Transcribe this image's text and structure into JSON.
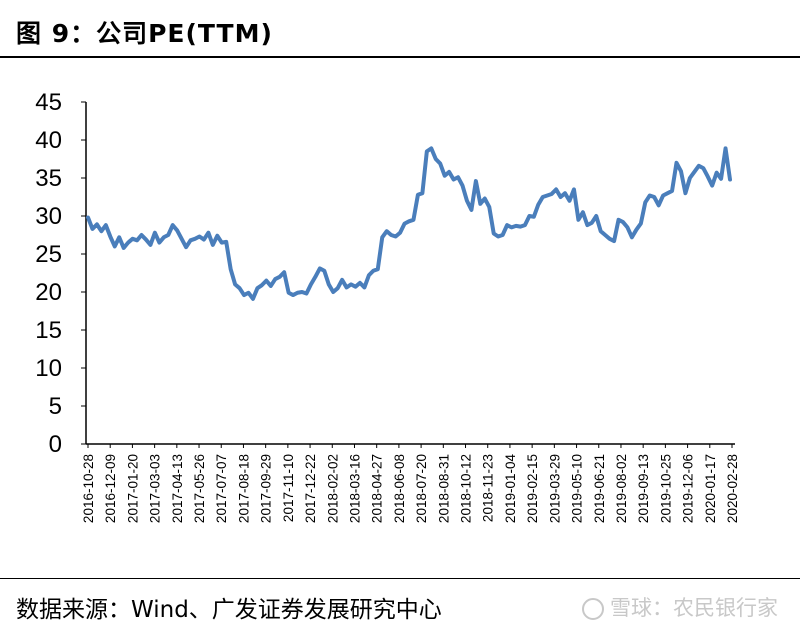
{
  "header": {
    "title": "图 9：公司PE(TTM)"
  },
  "footer": {
    "source": "数据来源：Wind、广发证券发展研究中心",
    "watermark": "雪球：农民银行家"
  },
  "colors": {
    "line": "#4a7ebb",
    "axis": "#000000",
    "text": "#000000"
  },
  "chart_data": {
    "type": "line",
    "title": "",
    "xlabel": "",
    "ylabel": "",
    "ylim": [
      0,
      45
    ],
    "yticks": [
      0,
      5,
      10,
      15,
      20,
      25,
      30,
      35,
      40,
      45
    ],
    "grid": false,
    "legend": "none",
    "xtick_labels": [
      "2016-10-28",
      "2016-12-09",
      "2017-01-20",
      "2017-03-03",
      "2017-04-13",
      "2017-05-26",
      "2017-07-07",
      "2017-08-18",
      "2017-09-29",
      "2017-11-10",
      "2017-12-22",
      "2018-02-02",
      "2018-03-16",
      "2018-04-27",
      "2018-06-08",
      "2018-07-20",
      "2018-08-31",
      "2018-10-12",
      "2018-11-23",
      "2019-01-04",
      "2019-02-15",
      "2019-03-29",
      "2019-05-10",
      "2019-06-21",
      "2019-08-02",
      "2019-09-13",
      "2019-10-25",
      "2019-12-06",
      "2020-01-17",
      "2020-02-28"
    ],
    "series": [
      {
        "values": [
          29.8,
          28.3,
          28.9,
          28.0,
          28.8,
          27.3,
          26.0,
          27.2,
          25.8,
          26.5,
          27.0,
          26.8,
          27.5,
          26.9,
          26.2,
          27.8,
          26.5,
          27.2,
          27.5,
          28.8,
          28.1,
          27.0,
          25.9,
          26.8,
          27.0,
          27.3,
          26.9,
          27.8,
          26.2,
          27.4,
          26.5,
          26.6,
          23.0,
          21.0,
          20.5,
          19.6,
          19.9,
          19.1,
          20.5,
          20.9,
          21.5,
          20.8,
          21.7,
          22.0,
          22.6,
          19.9,
          19.6,
          19.9,
          20.0,
          19.8,
          21.0,
          22.0,
          23.1,
          22.8,
          21.0,
          20.0,
          20.5,
          21.6,
          20.6,
          21.0,
          20.7,
          21.2,
          20.6,
          22.2,
          22.8,
          23.0,
          27.2,
          28.0,
          27.5,
          27.3,
          27.8,
          29.0,
          29.3,
          29.5,
          32.8,
          33.0,
          38.5,
          38.9,
          37.5,
          36.9,
          35.3,
          35.8,
          34.8,
          35.1,
          34.0,
          32.0,
          30.8,
          34.6,
          31.6,
          32.3,
          31.2,
          27.7,
          27.3,
          27.5,
          28.8,
          28.5,
          28.7,
          28.6,
          28.8,
          30.0,
          29.9,
          31.5,
          32.5,
          32.7,
          32.9,
          33.5,
          32.5,
          33.0,
          32.0,
          33.5,
          29.5,
          30.5,
          28.8,
          29.1,
          30.0,
          28.0,
          27.5,
          27.0,
          26.7,
          29.5,
          29.2,
          28.5,
          27.2,
          28.2,
          29.0,
          31.8,
          32.7,
          32.5,
          31.4,
          32.7,
          33.0,
          33.3,
          37.0,
          35.9,
          33.0,
          35.0,
          35.8,
          36.6,
          36.3,
          35.2,
          34.0,
          35.7,
          34.9,
          38.9,
          34.8
        ]
      }
    ]
  }
}
